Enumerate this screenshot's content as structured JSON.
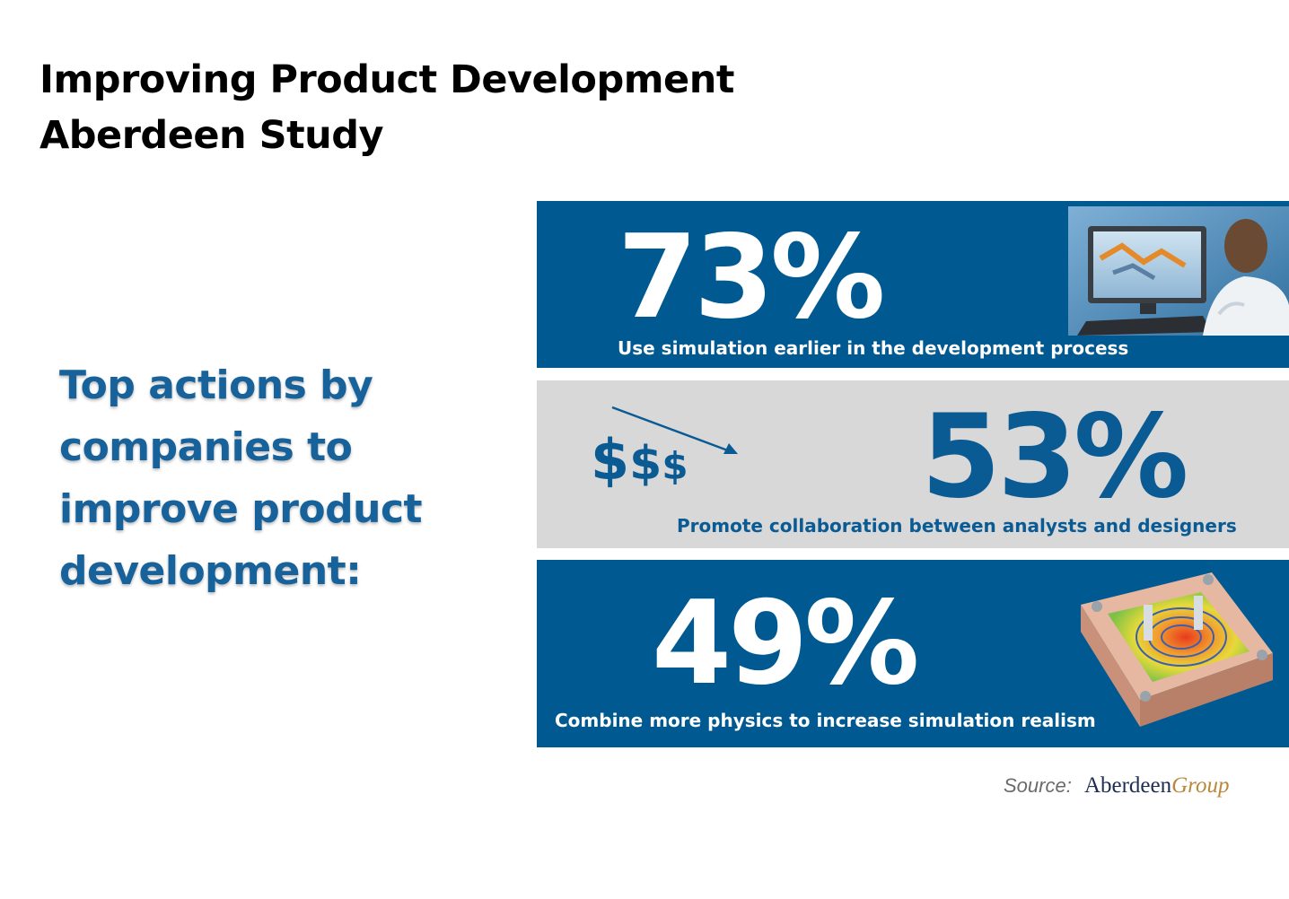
{
  "title": {
    "line1": "Improving Product Development",
    "line2": "Aberdeen Study"
  },
  "lead": {
    "lines": [
      "Top actions by",
      "companies to",
      "improve product",
      "development:"
    ]
  },
  "stats": [
    {
      "value": "73%",
      "caption": "Use simulation earlier in the development process",
      "image": "engineer-at-computer-photo"
    },
    {
      "value": "53%",
      "caption": "Promote collaboration between analysts and designers",
      "image": "decreasing-cost-icon"
    },
    {
      "value": "49%",
      "caption": "Combine more physics to increase simulation realism",
      "image": "simulation-plate-render"
    }
  ],
  "money_icon_text": "$$$",
  "source": {
    "label": "Source:",
    "brand_main": "Aberdeen",
    "brand_accent": "Group"
  },
  "colors": {
    "panel_blue": "#005a91",
    "panel_gray": "#d8d8d8",
    "lead_blue": "#17629a",
    "brand_navy": "#1d2d52",
    "brand_gold": "#b8893a"
  }
}
